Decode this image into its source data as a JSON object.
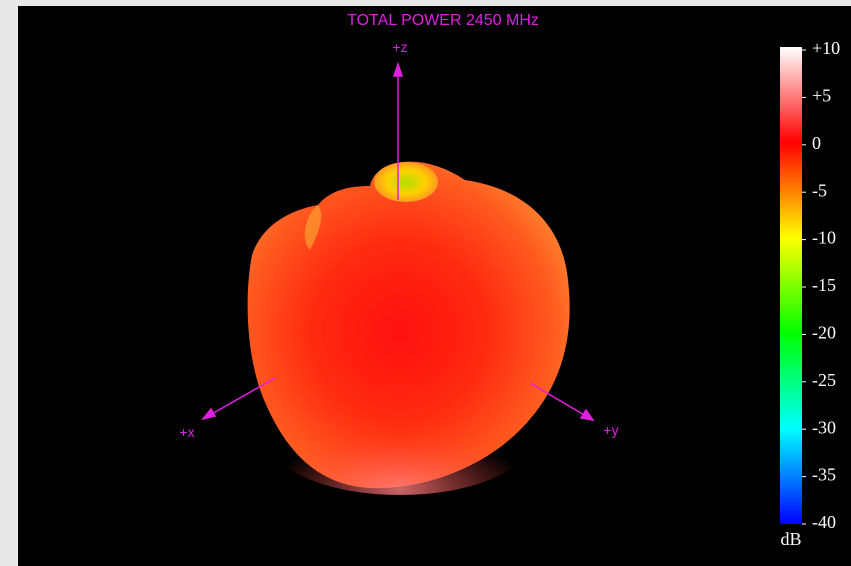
{
  "chart_data": {
    "type": "pattern3d",
    "title": "TOTAL POWER 2450 MHz",
    "axis_labels": {
      "z": "+z",
      "x": "+x",
      "y": "+y"
    },
    "colorbar": {
      "lim": [
        -40,
        10
      ],
      "unit": "dB",
      "ticks": [
        {
          "value": 10,
          "label": "+10"
        },
        {
          "value": 5,
          "label": "+5"
        },
        0,
        -5,
        -10,
        -15,
        -20,
        -25,
        -30,
        -35,
        -40
      ]
    }
  }
}
